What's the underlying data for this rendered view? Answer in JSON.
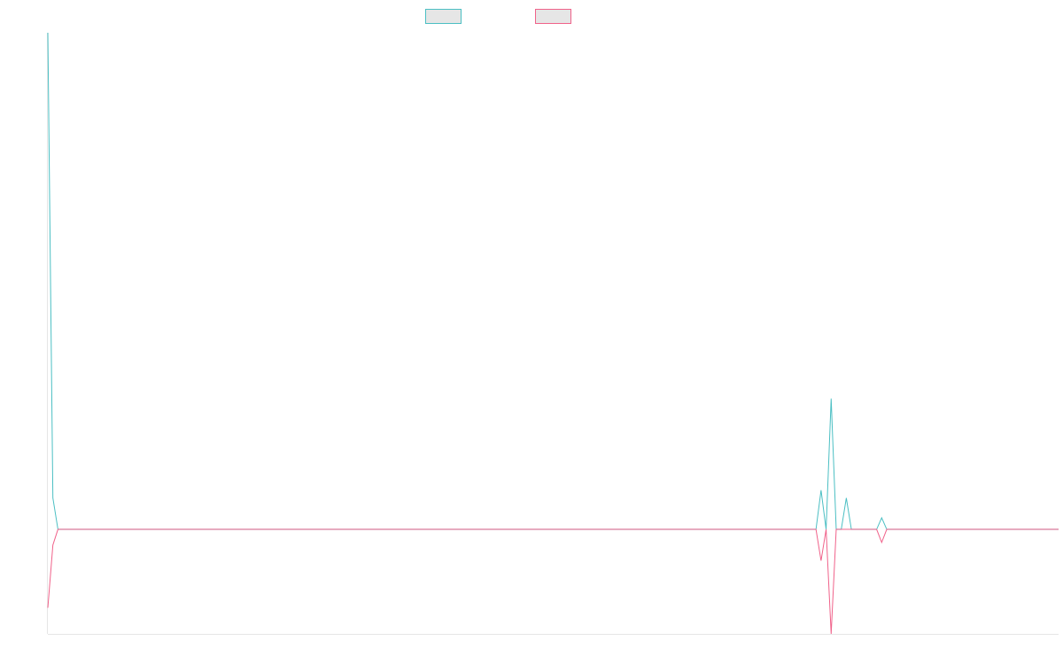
{
  "chart_data": {
    "type": "line",
    "title": "",
    "xlabel": "",
    "ylabel": "",
    "grid": false,
    "legend_position": "top-center",
    "x_count": 201,
    "ylim": [
      -20,
      95
    ],
    "legend": [
      {
        "series_index": 0,
        "label": ""
      },
      {
        "series_index": 1,
        "label": ""
      }
    ],
    "series": [
      {
        "color": "#4bbfc3",
        "legend_fill": "#e6e6e6",
        "points": [
          [
            0,
            95
          ],
          [
            1,
            6
          ],
          [
            2,
            0
          ],
          [
            152,
            0
          ],
          [
            153,
            7.5
          ],
          [
            154,
            0
          ],
          [
            155,
            25
          ],
          [
            156,
            0
          ],
          [
            157,
            0
          ],
          [
            158,
            6
          ],
          [
            159,
            0
          ],
          [
            164,
            0
          ],
          [
            165,
            2.2
          ],
          [
            166,
            0
          ],
          [
            200,
            0
          ]
        ]
      },
      {
        "color": "#f0628a",
        "legend_fill": "#e6e6e6",
        "points": [
          [
            0,
            -15
          ],
          [
            1,
            -3
          ],
          [
            2,
            0
          ],
          [
            152,
            0
          ],
          [
            153,
            -6
          ],
          [
            154,
            0
          ],
          [
            155,
            -20
          ],
          [
            156,
            0
          ],
          [
            164,
            0
          ],
          [
            165,
            -2.5
          ],
          [
            166,
            0
          ],
          [
            200,
            0
          ]
        ]
      }
    ]
  }
}
